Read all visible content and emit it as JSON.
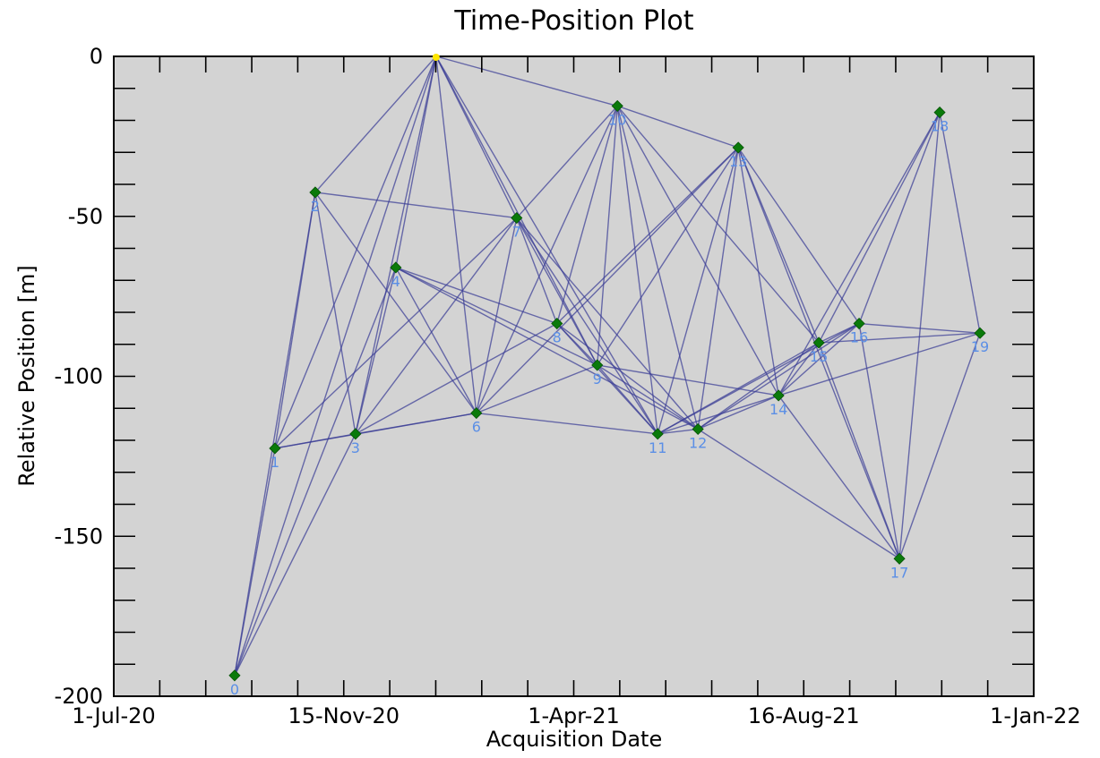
{
  "chart_data": {
    "type": "network-scatter",
    "title": "Time-Position Plot",
    "xlabel": "Acquisition Date",
    "ylabel": "Relative Position [m]",
    "ylim": [
      -200,
      0
    ],
    "xlim_days": [
      0,
      548
    ],
    "x_ticks": [
      {
        "day": 0,
        "label": "1-Jul-20"
      },
      {
        "day": 137,
        "label": "15-Nov-20"
      },
      {
        "day": 274,
        "label": "1-Apr-21"
      },
      {
        "day": 411,
        "label": "16-Aug-21"
      },
      {
        "day": 549,
        "label": "1-Jan-22"
      }
    ],
    "y_ticks": [
      0,
      -50,
      -100,
      -150,
      -200
    ],
    "y_minor_step": 10,
    "x_minor_step_days": 27.4,
    "points": [
      {
        "id": "0",
        "day": 72,
        "y": -193.5
      },
      {
        "id": "1",
        "day": 96,
        "y": -122.5
      },
      {
        "id": "2",
        "day": 120,
        "y": -42.5
      },
      {
        "id": "3",
        "day": 144,
        "y": -118.0
      },
      {
        "id": "4",
        "day": 168,
        "y": -66.0
      },
      {
        "id": "5",
        "day": 192,
        "y": 0.0
      },
      {
        "id": "6",
        "day": 216,
        "y": -111.5
      },
      {
        "id": "7",
        "day": 240,
        "y": -50.5
      },
      {
        "id": "8",
        "day": 264,
        "y": -83.5
      },
      {
        "id": "9",
        "day": 288,
        "y": -96.5
      },
      {
        "id": "10",
        "day": 300,
        "y": -15.5
      },
      {
        "id": "11",
        "day": 324,
        "y": -118.0
      },
      {
        "id": "12",
        "day": 348,
        "y": -116.5
      },
      {
        "id": "13",
        "day": 372,
        "y": -28.5
      },
      {
        "id": "14",
        "day": 396,
        "y": -106.0
      },
      {
        "id": "15",
        "day": 420,
        "y": -89.5
      },
      {
        "id": "16",
        "day": 444,
        "y": -83.5
      },
      {
        "id": "17",
        "day": 468,
        "y": -157.0
      },
      {
        "id": "18",
        "day": 492,
        "y": -17.5
      },
      {
        "id": "19",
        "day": 516,
        "y": -86.5
      }
    ],
    "edges": [
      [
        0,
        1
      ],
      [
        0,
        2
      ],
      [
        0,
        3
      ],
      [
        0,
        4
      ],
      [
        0,
        5
      ],
      [
        1,
        2
      ],
      [
        1,
        3
      ],
      [
        1,
        5
      ],
      [
        1,
        6
      ],
      [
        1,
        7
      ],
      [
        2,
        3
      ],
      [
        2,
        5
      ],
      [
        2,
        6
      ],
      [
        2,
        7
      ],
      [
        3,
        4
      ],
      [
        3,
        5
      ],
      [
        3,
        6
      ],
      [
        3,
        7
      ],
      [
        3,
        8
      ],
      [
        4,
        5
      ],
      [
        4,
        6
      ],
      [
        4,
        8
      ],
      [
        4,
        9
      ],
      [
        4,
        12
      ],
      [
        5,
        6
      ],
      [
        5,
        7
      ],
      [
        5,
        9
      ],
      [
        5,
        10
      ],
      [
        5,
        11
      ],
      [
        6,
        7
      ],
      [
        6,
        9
      ],
      [
        6,
        10
      ],
      [
        6,
        11
      ],
      [
        6,
        13
      ],
      [
        7,
        8
      ],
      [
        7,
        9
      ],
      [
        7,
        10
      ],
      [
        7,
        11
      ],
      [
        7,
        12
      ],
      [
        8,
        9
      ],
      [
        8,
        10
      ],
      [
        8,
        11
      ],
      [
        8,
        12
      ],
      [
        8,
        13
      ],
      [
        9,
        10
      ],
      [
        9,
        11
      ],
      [
        9,
        12
      ],
      [
        9,
        13
      ],
      [
        9,
        14
      ],
      [
        10,
        11
      ],
      [
        10,
        12
      ],
      [
        10,
        13
      ],
      [
        10,
        14
      ],
      [
        10,
        15
      ],
      [
        11,
        12
      ],
      [
        11,
        13
      ],
      [
        11,
        14
      ],
      [
        11,
        15
      ],
      [
        11,
        16
      ],
      [
        12,
        13
      ],
      [
        12,
        14
      ],
      [
        12,
        15
      ],
      [
        12,
        16
      ],
      [
        12,
        17
      ],
      [
        13,
        14
      ],
      [
        13,
        15
      ],
      [
        13,
        16
      ],
      [
        13,
        17
      ],
      [
        14,
        15
      ],
      [
        14,
        16
      ],
      [
        14,
        17
      ],
      [
        14,
        18
      ],
      [
        14,
        19
      ],
      [
        15,
        16
      ],
      [
        15,
        17
      ],
      [
        15,
        18
      ],
      [
        15,
        19
      ],
      [
        16,
        17
      ],
      [
        16,
        18
      ],
      [
        16,
        19
      ],
      [
        17,
        18
      ],
      [
        17,
        19
      ],
      [
        18,
        19
      ]
    ],
    "colors": {
      "plot_bg": "#d3d3d3",
      "edge": "#3a3d96",
      "point": "#0a7a0a",
      "point_label": "#5b8fe6",
      "highlight": "#ffe600"
    },
    "highlight_point": "5"
  }
}
